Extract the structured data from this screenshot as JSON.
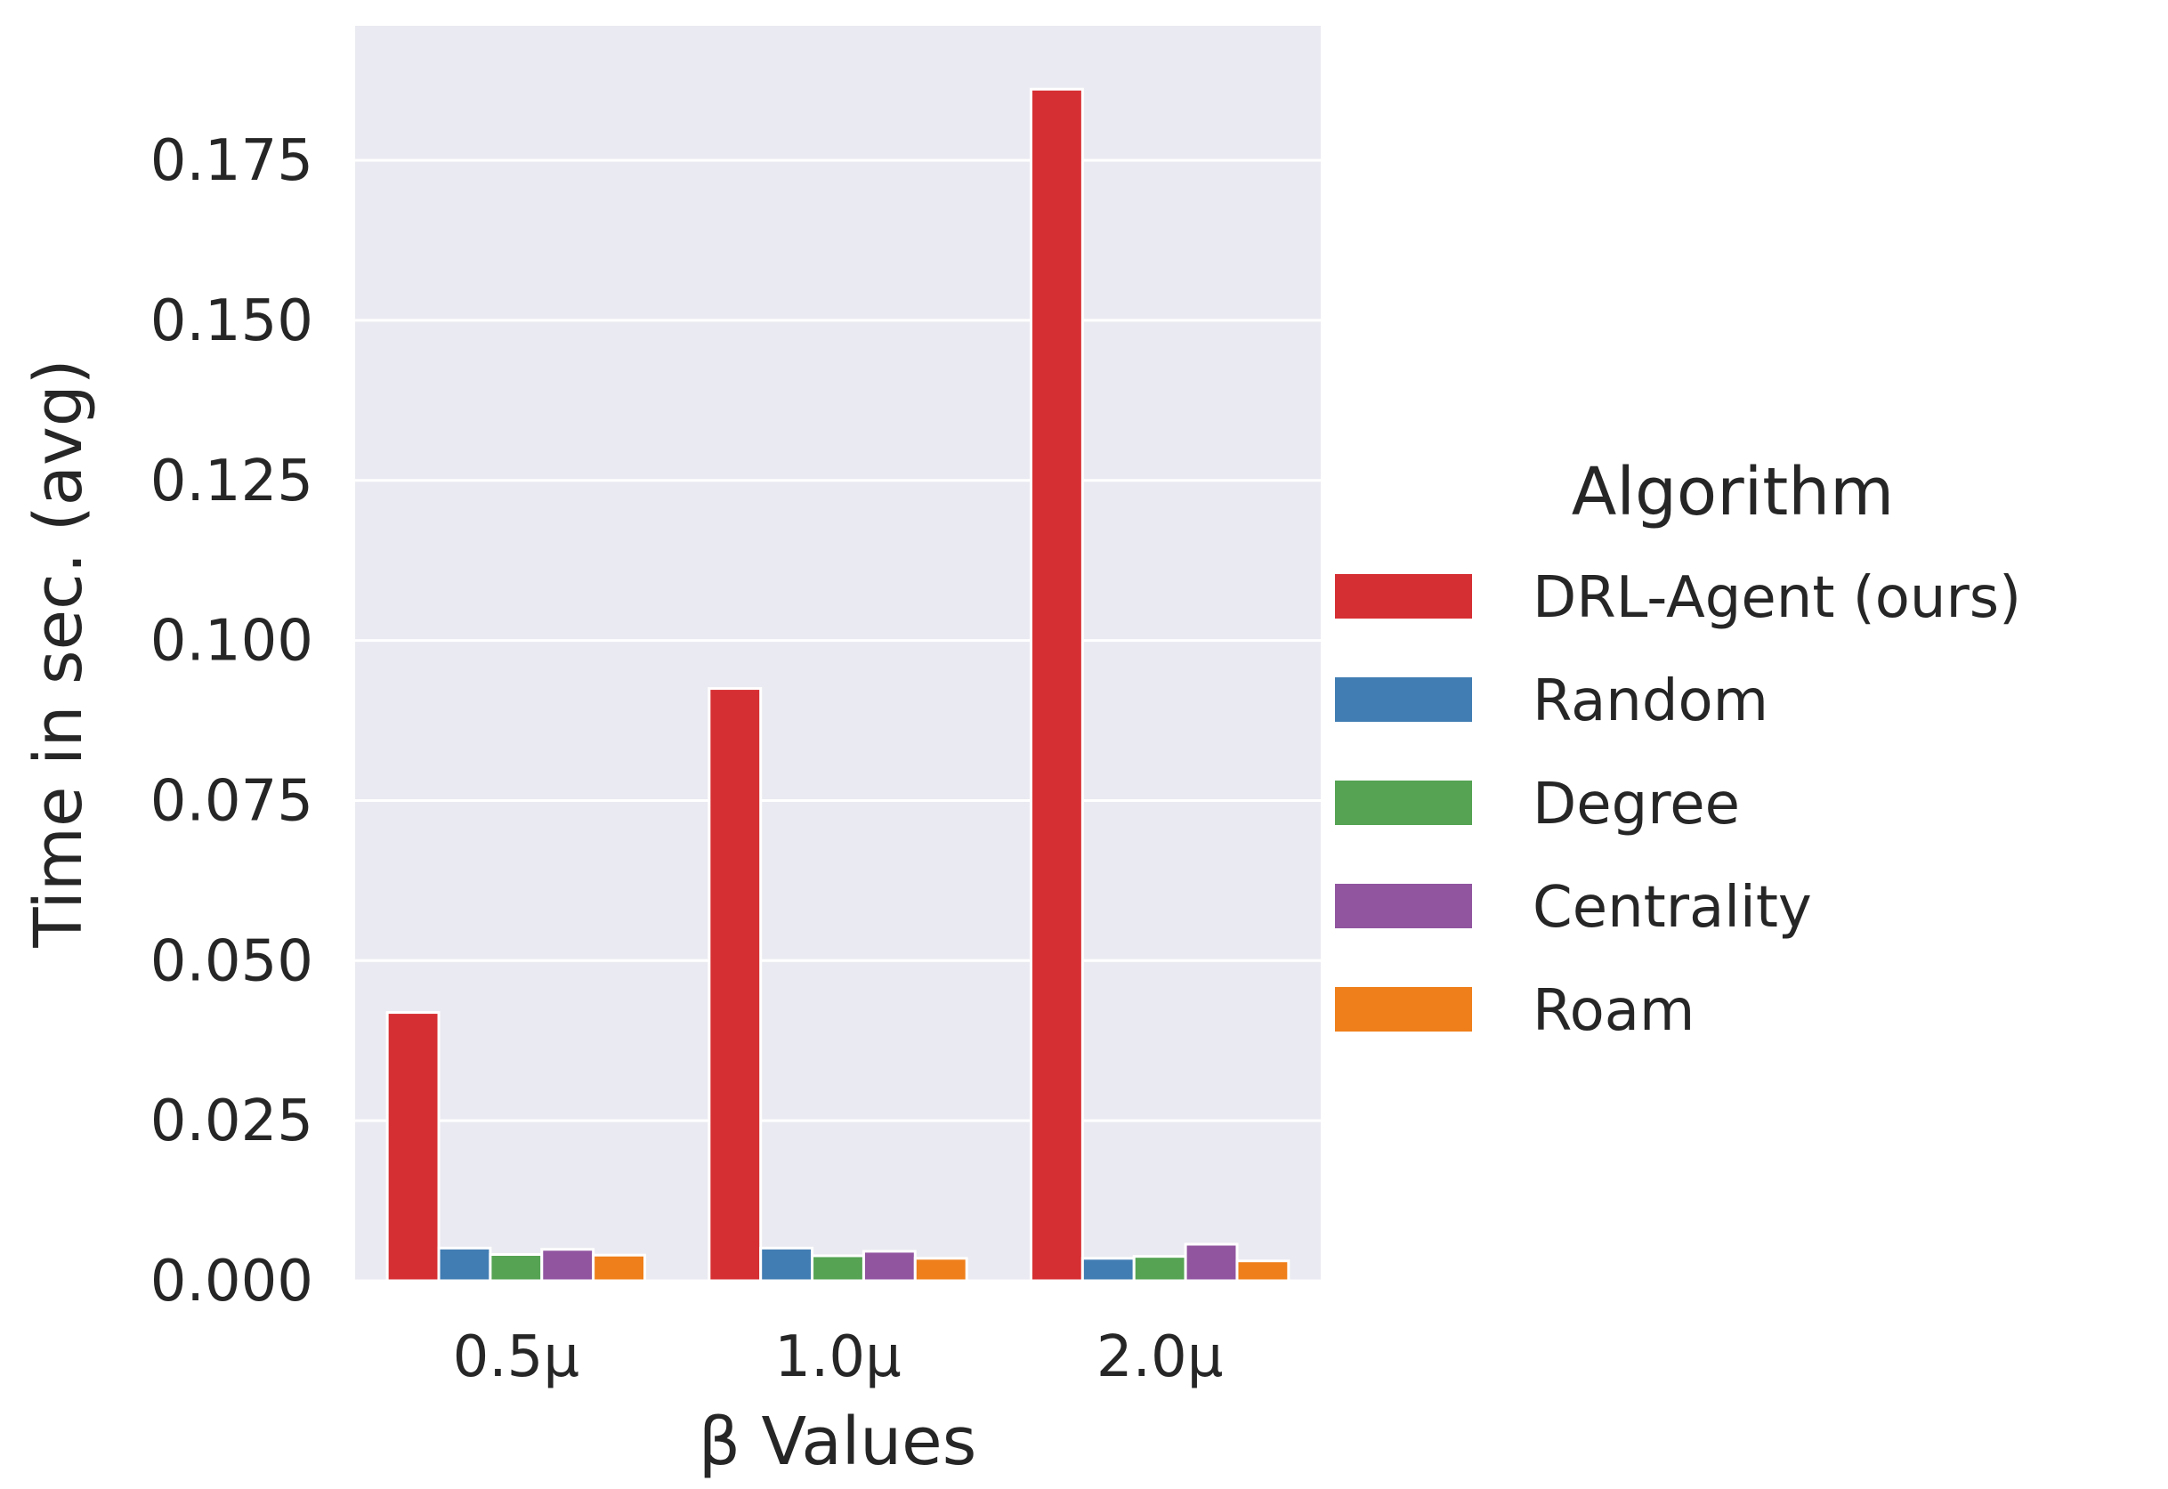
{
  "chart_data": {
    "type": "bar",
    "xlabel": "β Values",
    "ylabel": "Time in sec. (avg)",
    "categories": [
      "0.5μ",
      "1.0μ",
      "2.0μ"
    ],
    "ylim": [
      0,
      0.196
    ],
    "yticks": [
      "0.000",
      "0.025",
      "0.050",
      "0.075",
      "0.100",
      "0.125",
      "0.150",
      "0.175"
    ],
    "grid": true,
    "legend": {
      "title": "Algorithm",
      "placement": "right"
    },
    "series": [
      {
        "name": "DRL-Agent (ours)",
        "color": "#d62f33",
        "values": [
          0.0419,
          0.0925,
          0.1861
        ]
      },
      {
        "name": "Random",
        "color": "#417db3",
        "values": [
          0.0051,
          0.0051,
          0.0035
        ]
      },
      {
        "name": "Degree",
        "color": "#55a353",
        "values": [
          0.0041,
          0.0039,
          0.0038
        ]
      },
      {
        "name": "Centrality",
        "color": "#9155a0",
        "values": [
          0.0049,
          0.0046,
          0.0057
        ]
      },
      {
        "name": "Roam",
        "color": "#ef7f1a",
        "values": [
          0.004,
          0.0035,
          0.0031
        ]
      }
    ],
    "colors": {
      "plot_background": "#eaeaf2",
      "grid": "#ffffff",
      "text": "#262626"
    }
  }
}
